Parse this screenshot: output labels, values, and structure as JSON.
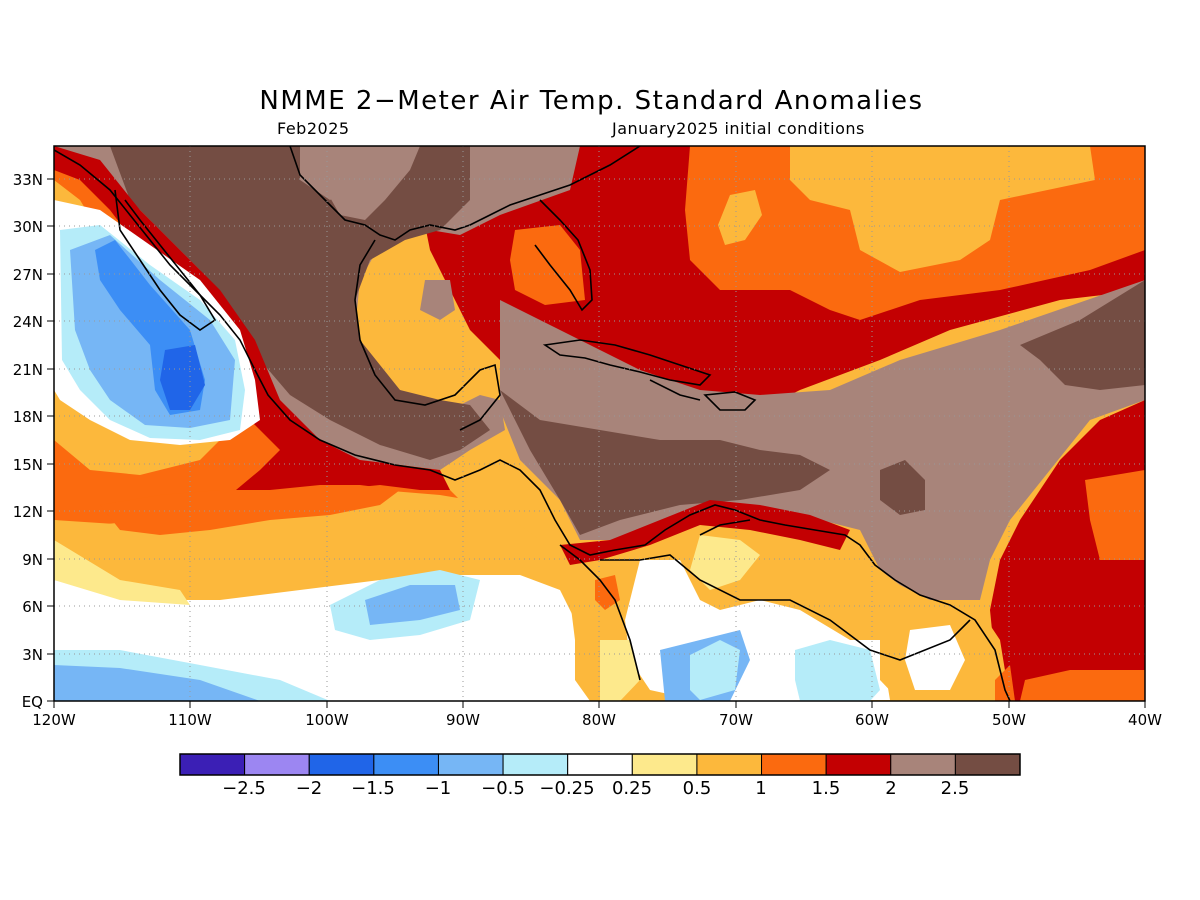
{
  "title": "NMME 2−Meter Air Temp. Standard Anomalies",
  "subtitle_left": "Feb2025",
  "subtitle_right": "January2025 initial conditions",
  "map": {
    "lon_range": [
      -120,
      -40
    ],
    "lat_range": [
      0,
      35
    ],
    "lat_ticks": [
      "EQ",
      "3N",
      "6N",
      "9N",
      "12N",
      "15N",
      "18N",
      "21N",
      "24N",
      "27N",
      "30N",
      "33N"
    ],
    "lon_ticks": [
      "120W",
      "110W",
      "100W",
      "90W",
      "80W",
      "70W",
      "60W",
      "50W",
      "40W"
    ],
    "gridlines": "dotted"
  },
  "colorbar": {
    "colors": [
      "#3b1fb5",
      "#9c86f2",
      "#2065e8",
      "#3c8ef5",
      "#76b6f5",
      "#b5ecf9",
      "#ffffff",
      "#fde98c",
      "#fcb83c",
      "#fb6a0f",
      "#c30002",
      "#a8847a",
      "#744d43"
    ],
    "labels": [
      "−2.5",
      "−2",
      "−1.5",
      "−1",
      "−0.5",
      "−0.25",
      "0.25",
      "0.5",
      "1",
      "1.5",
      "2",
      "2.5"
    ]
  }
}
